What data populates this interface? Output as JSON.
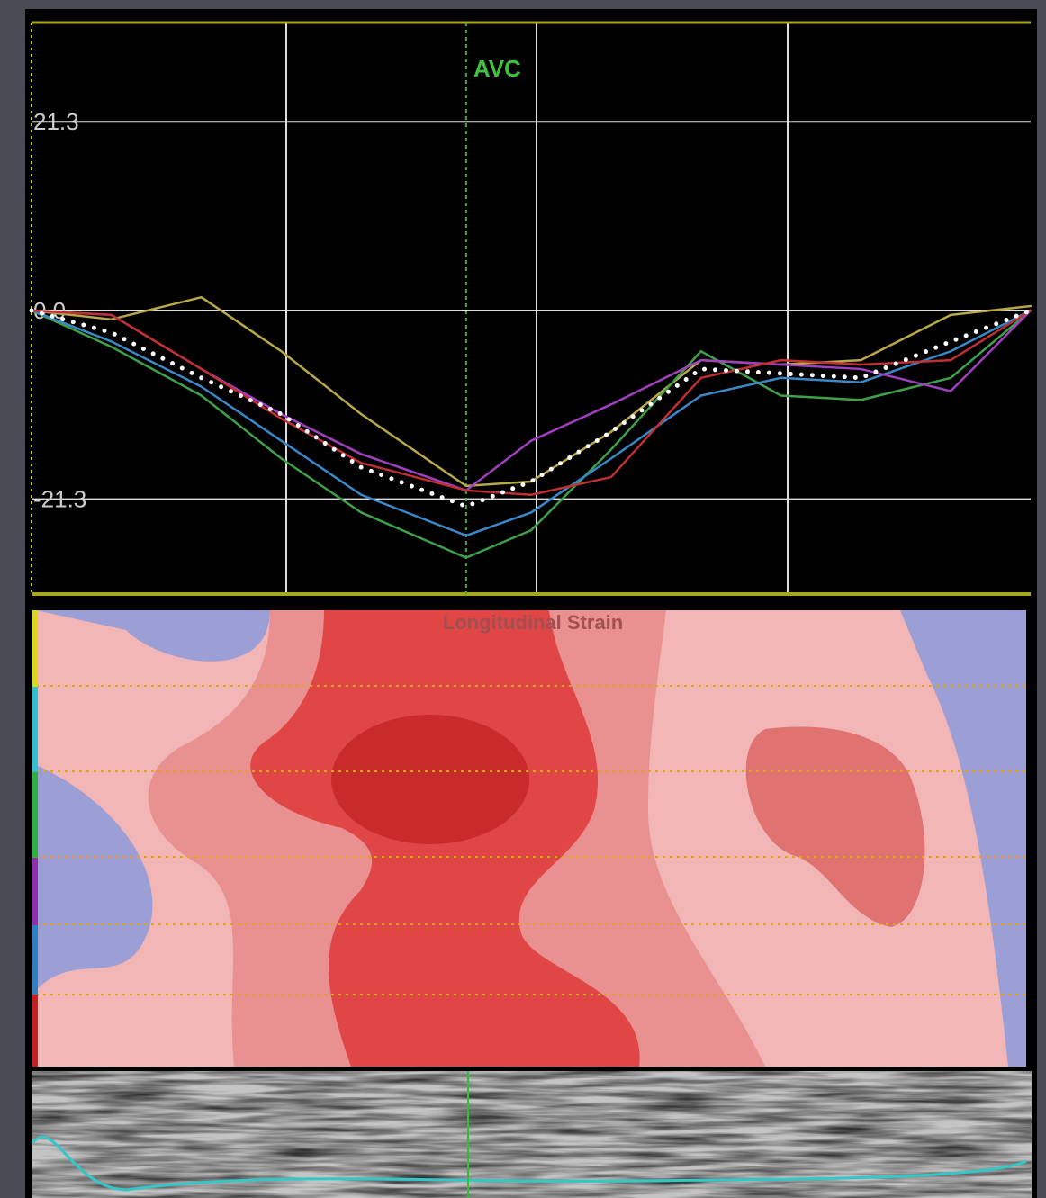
{
  "chart_data": {
    "type": "line",
    "x": [
      0,
      8,
      17,
      25,
      33,
      43.5,
      50,
      58,
      67,
      75,
      83,
      92,
      100
    ],
    "xlim": [
      0,
      100
    ],
    "ylim": [
      -32,
      32.5
    ],
    "yticks": [
      21.3,
      {
        "value": 0,
        "label": "0.0"
      },
      -21.3
    ],
    "annotation": {
      "text": "AVC",
      "x": 43.5
    },
    "heatmap_title": "Longitudinal Strain",
    "series": [
      {
        "color": "#b8a848",
        "values": [
          0,
          -1,
          1.5,
          -4.6,
          -11.7,
          -19.8,
          -19.3,
          -13.7,
          -5.6,
          -6.1,
          -5.6,
          -0.5,
          0.5
        ]
      },
      {
        "color": "#3fa04a",
        "values": [
          0,
          -4.1,
          -9.6,
          -16.7,
          -22.8,
          -27.9,
          -24.8,
          -15.7,
          -4.6,
          -9.6,
          -10.1,
          -7.6,
          0
        ]
      },
      {
        "color": "#3a88c8",
        "values": [
          0,
          -3.5,
          -8.6,
          -14.7,
          -20.8,
          -25.4,
          -22.8,
          -16.7,
          -9.6,
          -7.6,
          -8.1,
          -4.6,
          0
        ]
      },
      {
        "color": "#a040c0",
        "values": [
          0,
          -0.5,
          -6.6,
          -11.7,
          -16.2,
          -20.3,
          -14.7,
          -10.6,
          -5.6,
          -6.1,
          -6.6,
          -9.1,
          0
        ]
      },
      {
        "color": "#c03030",
        "values": [
          0,
          -0.5,
          -6.6,
          -12.2,
          -17.2,
          -20.3,
          -20.8,
          -18.8,
          -7.6,
          -5.6,
          -6.1,
          -5.6,
          0
        ]
      },
      {
        "color": "#ffffff",
        "style": "dotted",
        "values": [
          0,
          -2.5,
          -7.6,
          -11.7,
          -17.7,
          -22.1,
          -19.3,
          -13.7,
          -6.6,
          -7.1,
          -7.6,
          -3.5,
          0
        ]
      }
    ]
  }
}
